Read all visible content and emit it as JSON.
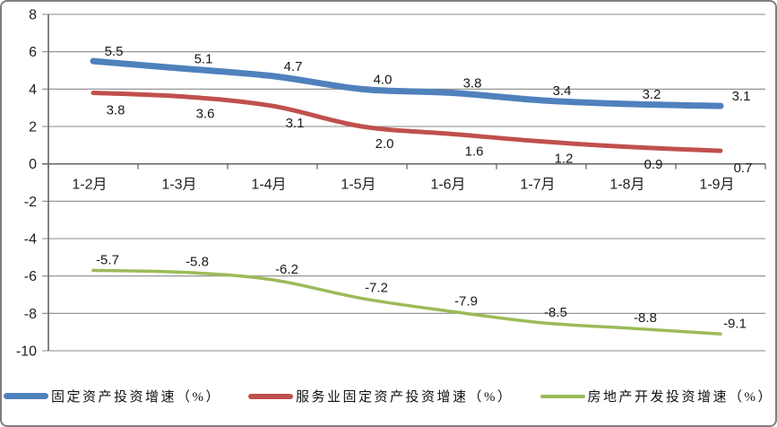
{
  "chart_data": {
    "type": "line",
    "title": "",
    "xlabel": "",
    "ylabel": "",
    "categories": [
      "1-2月",
      "1-3月",
      "1-4月",
      "1-5月",
      "1-6月",
      "1-7月",
      "1-8月",
      "1-9月"
    ],
    "series": [
      {
        "name": "固定资产投资增速（%）",
        "color": "#4F81BD",
        "values": [
          5.5,
          5.1,
          4.7,
          4.0,
          3.8,
          3.4,
          3.2,
          3.1
        ]
      },
      {
        "name": "服务业固定资产投资增速（%）",
        "color": "#C0504D",
        "values": [
          3.8,
          3.6,
          3.1,
          2.0,
          1.6,
          1.2,
          0.9,
          0.7
        ]
      },
      {
        "name": "房地产开发投资增速（%）",
        "color": "#9BBB59",
        "values": [
          -5.7,
          -5.8,
          -6.2,
          -7.2,
          -7.9,
          -8.5,
          -8.8,
          -9.1
        ]
      }
    ],
    "ylim": [
      -10,
      8
    ],
    "yticks": [
      8,
      6,
      4,
      2,
      0,
      -2,
      -4,
      -6,
      -8,
      -10
    ],
    "label_decimals": 1,
    "grid": true,
    "smoothed_lines": true,
    "legend_position": "bottom",
    "colors": {
      "gridline": "#8a8a8a",
      "axis": "#666666",
      "text": "#1f1f1f"
    }
  }
}
